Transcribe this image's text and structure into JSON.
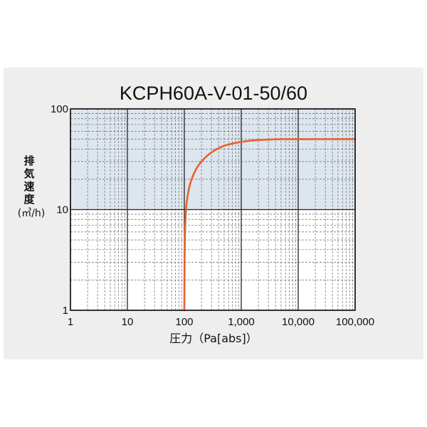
{
  "chart_data": {
    "type": "line",
    "title": "KCPH60A-V-01-50/60",
    "xlabel": "圧力（Pa[abs]）",
    "ylabel_chars": [
      "排",
      "気",
      "速",
      "度"
    ],
    "ylabel_unit": "(㎥/h)",
    "x_scale": "log",
    "y_scale": "log",
    "xlim": [
      1,
      100000
    ],
    "ylim": [
      1,
      100
    ],
    "x_ticks": [
      1,
      10,
      100,
      1000,
      10000,
      100000
    ],
    "x_tick_labels": [
      "1",
      "10",
      "100",
      "1,000",
      "10,000",
      "100,000"
    ],
    "y_ticks": [
      1,
      10,
      100
    ],
    "y_tick_labels": [
      "1",
      "10",
      "100"
    ],
    "grid": true,
    "highlight_band": {
      "y_range": [
        10,
        100
      ],
      "color": "#dde6ee"
    },
    "series": [
      {
        "color": "#e8612c",
        "points": [
          [
            100,
            1
          ],
          [
            101,
            3
          ],
          [
            103,
            6
          ],
          [
            107,
            10
          ],
          [
            115,
            14
          ],
          [
            130,
            19
          ],
          [
            160,
            25
          ],
          [
            200,
            30
          ],
          [
            300,
            37
          ],
          [
            500,
            43
          ],
          [
            1000,
            47
          ],
          [
            2000,
            49
          ],
          [
            5000,
            50
          ],
          [
            10000,
            50
          ],
          [
            100000,
            50
          ]
        ]
      }
    ]
  }
}
